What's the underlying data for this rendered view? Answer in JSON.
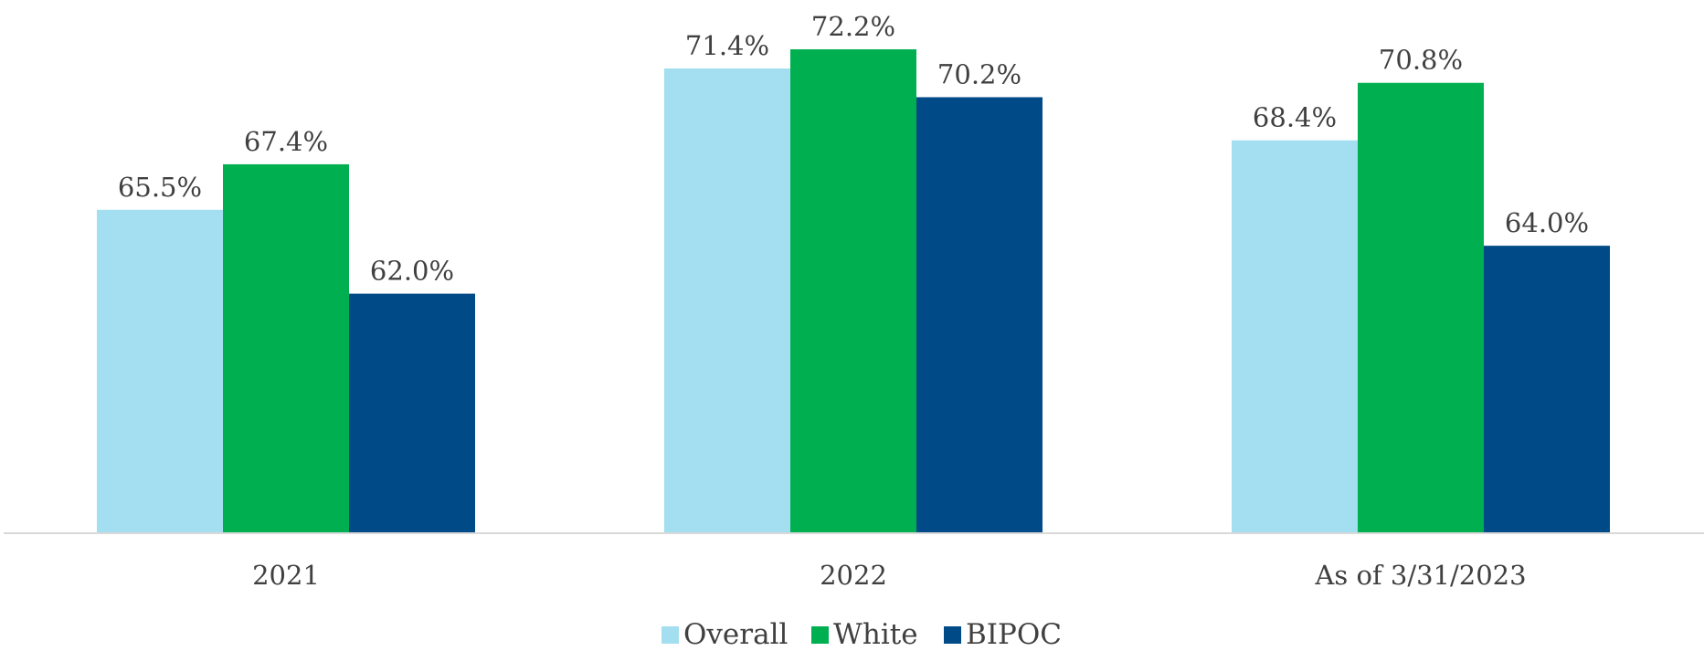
{
  "chart_data": {
    "type": "bar",
    "categories": [
      "2021",
      "2022",
      "As of 3/31/2023"
    ],
    "series": [
      {
        "name": "Overall",
        "values": [
          65.5,
          71.4,
          68.4
        ],
        "labels": [
          "65.5%",
          "71.4%",
          "68.4%"
        ],
        "color": "#a3dff0"
      },
      {
        "name": "White",
        "values": [
          67.4,
          72.2,
          70.8
        ],
        "labels": [
          "67.4%",
          "72.2%",
          "70.8%"
        ],
        "color": "#00b050"
      },
      {
        "name": "BIPOC",
        "values": [
          62.0,
          70.2,
          64.0
        ],
        "labels": [
          "62.0%",
          "70.2%",
          "64.0%"
        ],
        "color": "#004a87"
      }
    ],
    "ylim": [
      52,
      74
    ],
    "grid": false,
    "legend_position": "bottom"
  }
}
